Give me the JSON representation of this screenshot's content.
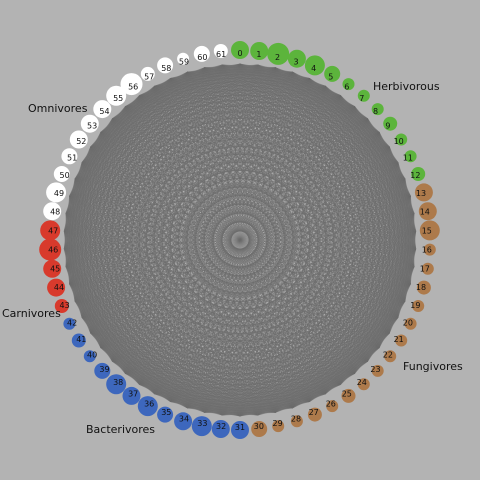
{
  "colors": {
    "background": "#b3b3b3",
    "edge": "#6e6e6e",
    "herbivorous": "#5cb43c",
    "fungivores": "#ad7a4b",
    "bacterivores": "#3d67bd",
    "carnivores": "#d83a2c",
    "omnivores": "#ffffff"
  },
  "groups": [
    {
      "key": "herbivorous",
      "label": "Herbivorous",
      "color": "#5cb43c",
      "first": 0,
      "last": 12
    },
    {
      "key": "fungivores",
      "label": "Fungivores",
      "color": "#ad7a4b",
      "first": 13,
      "last": 30
    },
    {
      "key": "bacterivores",
      "label": "Bacterivores",
      "color": "#3d67bd",
      "first": 31,
      "last": 42
    },
    {
      "key": "carnivores",
      "label": "Carnivores",
      "color": "#d83a2c",
      "first": 43,
      "last": 47
    },
    {
      "key": "omnivores",
      "label": "Omnivores",
      "color": "#ffffff",
      "first": 48,
      "last": 61
    }
  ],
  "nodes": [
    {
      "id": "0",
      "group": "herbivorous",
      "size": 9
    },
    {
      "id": "1",
      "group": "herbivorous",
      "size": 9
    },
    {
      "id": "2",
      "group": "herbivorous",
      "size": 11
    },
    {
      "id": "3",
      "group": "herbivorous",
      "size": 9
    },
    {
      "id": "4",
      "group": "herbivorous",
      "size": 10
    },
    {
      "id": "5",
      "group": "herbivorous",
      "size": 8
    },
    {
      "id": "6",
      "group": "herbivorous",
      "size": 6
    },
    {
      "id": "7",
      "group": "herbivorous",
      "size": 6
    },
    {
      "id": "8",
      "group": "herbivorous",
      "size": 6
    },
    {
      "id": "9",
      "group": "herbivorous",
      "size": 7
    },
    {
      "id": "10",
      "group": "herbivorous",
      "size": 6
    },
    {
      "id": "11",
      "group": "herbivorous",
      "size": 6
    },
    {
      "id": "12",
      "group": "herbivorous",
      "size": 7
    },
    {
      "id": "13",
      "group": "fungivores",
      "size": 9
    },
    {
      "id": "14",
      "group": "fungivores",
      "size": 9
    },
    {
      "id": "15",
      "group": "fungivores",
      "size": 10
    },
    {
      "id": "16",
      "group": "fungivores",
      "size": 6
    },
    {
      "id": "17",
      "group": "fungivores",
      "size": 6
    },
    {
      "id": "18",
      "group": "fungivores",
      "size": 7
    },
    {
      "id": "19",
      "group": "fungivores",
      "size": 6
    },
    {
      "id": "20",
      "group": "fungivores",
      "size": 6
    },
    {
      "id": "21",
      "group": "fungivores",
      "size": 6
    },
    {
      "id": "22",
      "group": "fungivores",
      "size": 6
    },
    {
      "id": "23",
      "group": "fungivores",
      "size": 6
    },
    {
      "id": "24",
      "group": "fungivores",
      "size": 6
    },
    {
      "id": "25",
      "group": "fungivores",
      "size": 7
    },
    {
      "id": "26",
      "group": "fungivores",
      "size": 6
    },
    {
      "id": "27",
      "group": "fungivores",
      "size": 7
    },
    {
      "id": "28",
      "group": "fungivores",
      "size": 6
    },
    {
      "id": "29",
      "group": "fungivores",
      "size": 6
    },
    {
      "id": "30",
      "group": "fungivores",
      "size": 8
    },
    {
      "id": "31",
      "group": "bacterivores",
      "size": 9
    },
    {
      "id": "32",
      "group": "bacterivores",
      "size": 9
    },
    {
      "id": "33",
      "group": "bacterivores",
      "size": 10
    },
    {
      "id": "34",
      "group": "bacterivores",
      "size": 9
    },
    {
      "id": "35",
      "group": "bacterivores",
      "size": 8
    },
    {
      "id": "36",
      "group": "bacterivores",
      "size": 10
    },
    {
      "id": "37",
      "group": "bacterivores",
      "size": 9
    },
    {
      "id": "38",
      "group": "bacterivores",
      "size": 10
    },
    {
      "id": "39",
      "group": "bacterivores",
      "size": 8
    },
    {
      "id": "40",
      "group": "bacterivores",
      "size": 6
    },
    {
      "id": "41",
      "group": "bacterivores",
      "size": 7
    },
    {
      "id": "42",
      "group": "bacterivores",
      "size": 6
    },
    {
      "id": "43",
      "group": "carnivores",
      "size": 7
    },
    {
      "id": "44",
      "group": "carnivores",
      "size": 9
    },
    {
      "id": "45",
      "group": "carnivores",
      "size": 9
    },
    {
      "id": "46",
      "group": "carnivores",
      "size": 11
    },
    {
      "id": "47",
      "group": "carnivores",
      "size": 10
    },
    {
      "id": "48",
      "group": "omnivores",
      "size": 9
    },
    {
      "id": "49",
      "group": "omnivores",
      "size": 10
    },
    {
      "id": "50",
      "group": "omnivores",
      "size": 8
    },
    {
      "id": "51",
      "group": "omnivores",
      "size": 8
    },
    {
      "id": "52",
      "group": "omnivores",
      "size": 9
    },
    {
      "id": "53",
      "group": "omnivores",
      "size": 9
    },
    {
      "id": "54",
      "group": "omnivores",
      "size": 9
    },
    {
      "id": "55",
      "group": "omnivores",
      "size": 10
    },
    {
      "id": "56",
      "group": "omnivores",
      "size": 11
    },
    {
      "id": "57",
      "group": "omnivores",
      "size": 7
    },
    {
      "id": "58",
      "group": "omnivores",
      "size": 8
    },
    {
      "id": "59",
      "group": "omnivores",
      "size": 6
    },
    {
      "id": "60",
      "group": "omnivores",
      "size": 8
    },
    {
      "id": "61",
      "group": "omnivores",
      "size": 7
    }
  ]
}
